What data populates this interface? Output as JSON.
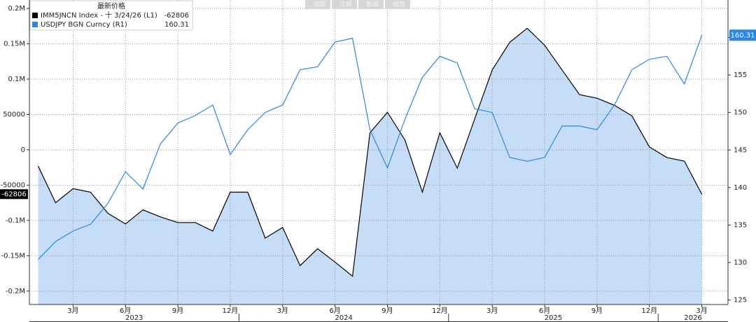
{
  "chart_data": {
    "type": "line",
    "toolbar": [
      "追踪",
      "注释",
      "新闻",
      "缩放"
    ],
    "legend_title": "最新价格",
    "x": [
      "2023-01",
      "2023-02",
      "2023-03",
      "2023-04",
      "2023-05",
      "2023-06",
      "2023-07",
      "2023-08",
      "2023-09",
      "2023-10",
      "2023-11",
      "2023-12",
      "2024-01",
      "2024-02",
      "2024-03",
      "2024-04",
      "2024-05",
      "2024-06",
      "2024-07",
      "2024-08",
      "2024-09",
      "2024-10",
      "2024-11",
      "2024-12",
      "2025-01",
      "2025-02",
      "2025-03",
      "2025-04",
      "2025-05",
      "2025-06",
      "2025-07",
      "2025-08",
      "2025-09",
      "2025-10",
      "2025-11",
      "2025-12",
      "2026-01",
      "2026-02",
      "2026-03"
    ],
    "xlim": [
      "2023-01",
      "2026-04"
    ],
    "xticks": [
      {
        "value": "2023-03",
        "label": "3月"
      },
      {
        "value": "2023-06",
        "label": "6月"
      },
      {
        "value": "2023-09",
        "label": "9月"
      },
      {
        "value": "2023-12",
        "label": "12月"
      },
      {
        "value": "2024-03",
        "label": "3月"
      },
      {
        "value": "2024-06",
        "label": "6月"
      },
      {
        "value": "2024-09",
        "label": "9月"
      },
      {
        "value": "2024-12",
        "label": "12月"
      },
      {
        "value": "2025-03",
        "label": "3月"
      },
      {
        "value": "2025-06",
        "label": "6月"
      },
      {
        "value": "2025-09",
        "label": "9月"
      },
      {
        "value": "2025-12",
        "label": "12月"
      },
      {
        "value": "2026-03",
        "label": "3月"
      }
    ],
    "x_years": [
      "2023",
      "2024",
      "2025",
      "2026"
    ],
    "ylim": [
      -219000,
      212000
    ],
    "yticks": [
      {
        "value": 200000,
        "label": "0.2M"
      },
      {
        "value": 150000,
        "label": "0.15M"
      },
      {
        "value": 100000,
        "label": "0.1M"
      },
      50000,
      0,
      -50000,
      {
        "value": -100000,
        "label": "-0.1M"
      },
      {
        "value": -150000,
        "label": "-0.15M"
      },
      {
        "value": -200000,
        "label": "-0.2M"
      }
    ],
    "y2lim": [
      124.4,
      165
    ],
    "y2ticks": [
      125,
      130,
      135,
      140,
      145,
      150,
      155,
      160
    ],
    "grid": true,
    "series": [
      {
        "name": "IMM5JNCN Index - 十 3/24/26  (L1)",
        "color": "#000000",
        "fill": "#c6ddf7",
        "values": [
          -23000,
          -75000,
          -55000,
          -60000,
          -90000,
          -105000,
          -85000,
          -95000,
          -103000,
          -103000,
          -115000,
          -60000,
          -60000,
          -125000,
          -110000,
          -164000,
          -140000,
          -159000,
          -179000,
          24000,
          53000,
          14000,
          -60000,
          24000,
          -26000,
          44000,
          113000,
          152000,
          172000,
          148000,
          113000,
          78000,
          73000,
          63000,
          48000,
          4000,
          -11000,
          -16000,
          -62806
        ]
      },
      {
        "name": "USDJPY BGN Curncy  (R1)",
        "color": "#2f86e0",
        "axis": "y2",
        "values": [
          130.4,
          132.8,
          134.2,
          135.1,
          137.9,
          142.1,
          139.8,
          145.8,
          148.6,
          149.6,
          151.0,
          144.4,
          147.7,
          150.0,
          151.0,
          155.7,
          156.1,
          159.4,
          159.9,
          147.7,
          142.6,
          149.1,
          154.7,
          157.5,
          156.6,
          150.5,
          150.0,
          144.0,
          143.5,
          144.0,
          148.2,
          148.2,
          147.7,
          151.0,
          155.7,
          157.1,
          157.5,
          153.8,
          160.31
        ]
      }
    ]
  }
}
